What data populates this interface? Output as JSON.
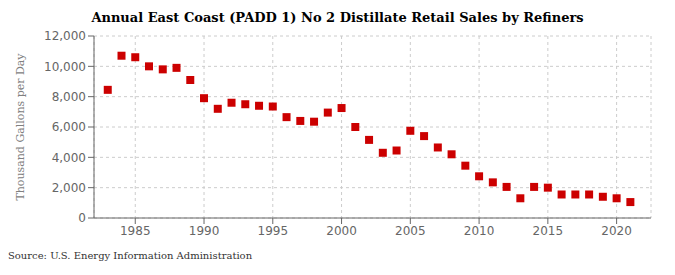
{
  "chart_data": {
    "type": "scatter",
    "title": "Annual East Coast (PADD 1) No 2 Distillate Retail Sales by Refiners",
    "ylabel": "Thousand Gallons per Day",
    "source": "Source: U.S. Energy Information Administration",
    "x": [
      1983,
      1984,
      1985,
      1986,
      1987,
      1988,
      1989,
      1990,
      1991,
      1992,
      1993,
      1994,
      1995,
      1996,
      1997,
      1998,
      1999,
      2000,
      2001,
      2002,
      2003,
      2004,
      2005,
      2006,
      2007,
      2008,
      2009,
      2010,
      2011,
      2012,
      2013,
      2014,
      2015,
      2016,
      2017,
      2018,
      2019,
      2020,
      2021
    ],
    "values": [
      8450,
      10700,
      10600,
      10000,
      9800,
      9900,
      9100,
      7900,
      7200,
      7600,
      7500,
      7400,
      7350,
      6650,
      6400,
      6350,
      6950,
      7250,
      6000,
      5150,
      4300,
      4450,
      5750,
      5400,
      4650,
      4200,
      3450,
      2750,
      2350,
      2050,
      1300,
      2050,
      2000,
      1550,
      1550,
      1550,
      1400,
      1300,
      1050
    ],
    "color": "#cc0000",
    "marker": "square",
    "xlim": [
      1982,
      2022.5
    ],
    "xticks": [
      1985,
      1990,
      1995,
      2000,
      2005,
      2010,
      2015,
      2020
    ],
    "ylim": [
      0,
      12000
    ],
    "yticks": [
      0,
      {
        "value": 2000,
        "label": "2,000"
      },
      {
        "value": 4000,
        "label": "4,000"
      },
      {
        "value": 6000,
        "label": "6,000"
      },
      {
        "value": 8000,
        "label": "8,000"
      },
      {
        "value": 10000,
        "label": "10,000"
      },
      {
        "value": 12000,
        "label": "12,000"
      }
    ],
    "grid": true
  }
}
